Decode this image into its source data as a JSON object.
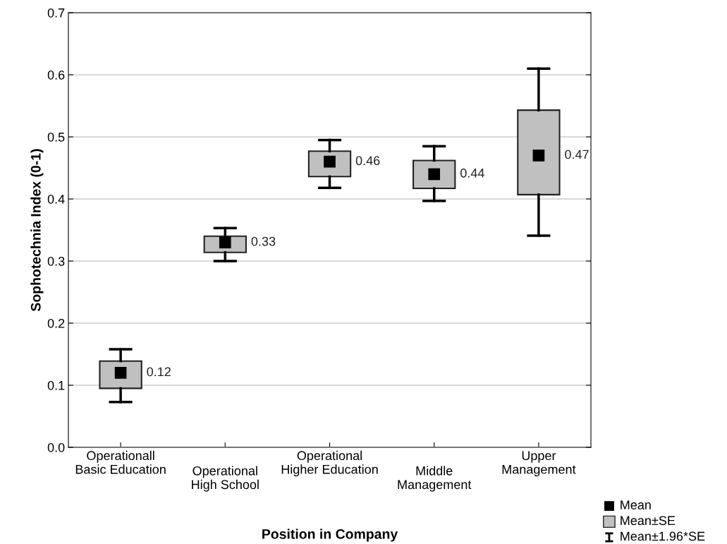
{
  "chart_data": {
    "type": "box",
    "xlabel": "Position in Company",
    "ylabel": "Sophotechnia Index (0-1)",
    "categories": [
      "Operationall\nBasic Education",
      "Operational\nHigh School",
      "Operational\nHigher Education",
      "Middle\nManagement",
      "Upper\nManagement"
    ],
    "boxes": [
      {
        "low": 0.073,
        "q1": 0.095,
        "median": 0.12,
        "q3": 0.139,
        "high": 0.158
      },
      {
        "low": 0.3,
        "q1": 0.314,
        "median": 0.33,
        "q3": 0.34,
        "high": 0.353
      },
      {
        "low": 0.418,
        "q1": 0.436,
        "median": 0.46,
        "q3": 0.477,
        "high": 0.495
      },
      {
        "low": 0.397,
        "q1": 0.417,
        "median": 0.44,
        "q3": 0.462,
        "high": 0.485
      },
      {
        "low": 0.341,
        "q1": 0.407,
        "median": 0.47,
        "q3": 0.543,
        "high": 0.61
      }
    ],
    "color": "#c0c0c0",
    "ylim": [
      0,
      0.7
    ],
    "yticks": [
      {
        "value": 0,
        "label": "0.0"
      },
      0.1,
      0.2,
      0.3,
      0.4,
      0.5,
      0.6,
      0.7
    ],
    "grid": "y",
    "value_labels": [
      "0.12",
      "0.33",
      "0.46",
      "0.44",
      "0.47"
    ],
    "marker": "square",
    "annotations": [
      "Mean",
      "Mean±SE",
      "Mean±1.96*SE"
    ]
  }
}
